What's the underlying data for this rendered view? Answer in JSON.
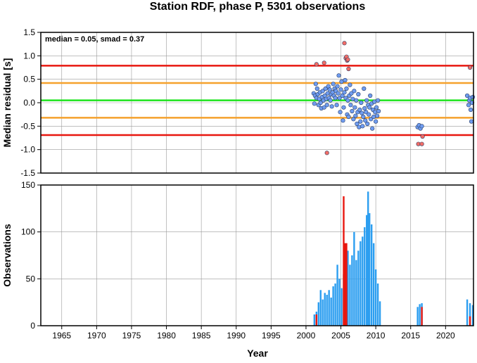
{
  "chart_data": [
    {
      "type": "scatter",
      "title": "Station RDF, phase P, 5301 observations",
      "ylabel": "Median residual [s]",
      "annotation": "median = 0.05, smad = 0.37",
      "xlim": [
        1962,
        2024
      ],
      "ylim": [
        -1.5,
        1.5
      ],
      "yticks": [
        "-1.5",
        "-1.0",
        "-0.5",
        "0.0",
        "0.5",
        "1.0",
        "1.5"
      ],
      "grid": true,
      "reference_lines": [
        {
          "y": 0.79,
          "color": "#e8170f"
        },
        {
          "y": 0.42,
          "color": "#f5a12c"
        },
        {
          "y": 0.05,
          "color": "#1de31d"
        },
        {
          "y": -0.32,
          "color": "#f5a12c"
        },
        {
          "y": -0.69,
          "color": "#e8170f"
        }
      ],
      "series": [
        {
          "color": "#6f9cf0",
          "points": [
            [
              2001.1,
              0.2
            ],
            [
              2001.2,
              -0.02
            ],
            [
              2001.3,
              0.15
            ],
            [
              2001.4,
              0.4
            ],
            [
              2001.5,
              0.1
            ],
            [
              2001.6,
              0.3
            ],
            [
              2001.7,
              0.18
            ],
            [
              2001.8,
              -0.05
            ],
            [
              2001.9,
              0.08
            ],
            [
              2002.0,
              0.22
            ],
            [
              2002.1,
              0.0
            ],
            [
              2002.2,
              -0.12
            ],
            [
              2002.3,
              0.12
            ],
            [
              2002.4,
              0.25
            ],
            [
              2002.5,
              0.05
            ],
            [
              2002.6,
              -0.1
            ],
            [
              2002.7,
              0.15
            ],
            [
              2002.8,
              0.3
            ],
            [
              2002.9,
              0.08
            ],
            [
              2003.0,
              -0.05
            ],
            [
              2003.1,
              0.2
            ],
            [
              2003.2,
              0.35
            ],
            [
              2003.3,
              0.1
            ],
            [
              2003.4,
              0.28
            ],
            [
              2003.5,
              0.05
            ],
            [
              2003.6,
              0.18
            ],
            [
              2003.7,
              -0.08
            ],
            [
              2003.8,
              0.22
            ],
            [
              2003.9,
              0.4
            ],
            [
              2004.0,
              0.15
            ],
            [
              2004.1,
              0.3
            ],
            [
              2004.2,
              0.1
            ],
            [
              2004.3,
              0.25
            ],
            [
              2004.4,
              -0.05
            ],
            [
              2004.5,
              0.35
            ],
            [
              2004.6,
              0.2
            ],
            [
              2004.7,
              0.58
            ],
            [
              2004.8,
              0.1
            ],
            [
              2004.9,
              -0.2
            ],
            [
              2005.0,
              0.28
            ],
            [
              2005.1,
              0.45
            ],
            [
              2005.2,
              0.15
            ],
            [
              2005.3,
              -0.38
            ],
            [
              2005.4,
              -0.1
            ],
            [
              2005.5,
              0.22
            ],
            [
              2005.6,
              0.48
            ],
            [
              2005.7,
              0.1
            ],
            [
              2005.8,
              0.3
            ],
            [
              2005.9,
              -0.25
            ],
            [
              2006.0,
              0.05
            ],
            [
              2006.1,
              -0.3
            ],
            [
              2006.2,
              0.15
            ],
            [
              2006.3,
              0.38
            ],
            [
              2006.4,
              -0.05
            ],
            [
              2006.5,
              0.2
            ],
            [
              2006.6,
              -0.18
            ],
            [
              2006.7,
              0.08
            ],
            [
              2006.8,
              -0.35
            ],
            [
              2006.9,
              0.25
            ],
            [
              2007.0,
              -0.1
            ],
            [
              2007.1,
              -0.28
            ],
            [
              2007.2,
              0.05
            ],
            [
              2007.3,
              -0.45
            ],
            [
              2007.4,
              -0.2
            ],
            [
              2007.5,
              0.18
            ],
            [
              2007.6,
              -0.52
            ],
            [
              2007.7,
              -0.15
            ],
            [
              2007.8,
              -0.4
            ],
            [
              2007.9,
              0.0
            ],
            [
              2008.0,
              -0.22
            ],
            [
              2008.1,
              -0.5
            ],
            [
              2008.2,
              -0.3
            ],
            [
              2008.3,
              0.3
            ],
            [
              2008.4,
              -0.12
            ],
            [
              2008.5,
              -0.38
            ],
            [
              2008.6,
              -0.2
            ],
            [
              2008.7,
              0.05
            ],
            [
              2008.8,
              -0.45
            ],
            [
              2008.9,
              -0.05
            ],
            [
              2009.0,
              -0.25
            ],
            [
              2009.1,
              -0.1
            ],
            [
              2009.2,
              0.15
            ],
            [
              2009.3,
              -0.35
            ],
            [
              2009.4,
              -0.02
            ],
            [
              2009.5,
              -0.55
            ],
            [
              2009.6,
              -0.15
            ],
            [
              2009.7,
              -0.3
            ],
            [
              2009.8,
              0.02
            ],
            [
              2009.9,
              -0.2
            ],
            [
              2010.0,
              -0.4
            ],
            [
              2010.1,
              -0.1
            ],
            [
              2010.2,
              -0.28
            ],
            [
              2010.3,
              0.05
            ],
            [
              2010.4,
              -0.18
            ],
            [
              2016.0,
              -0.52
            ],
            [
              2016.2,
              -0.48
            ],
            [
              2016.4,
              -0.55
            ],
            [
              2016.6,
              -0.5
            ],
            [
              2023.1,
              0.15
            ],
            [
              2023.3,
              -0.05
            ],
            [
              2023.4,
              0.05
            ],
            [
              2023.5,
              0.1
            ],
            [
              2023.6,
              -0.15
            ],
            [
              2023.7,
              -0.4
            ],
            [
              2023.8,
              0.0
            ],
            [
              2023.9,
              0.12
            ]
          ]
        },
        {
          "color": "#f26d66",
          "points": [
            [
              2001.5,
              0.82
            ],
            [
              2002.6,
              0.85
            ],
            [
              2003.0,
              -1.07
            ],
            [
              2005.5,
              1.27
            ],
            [
              2005.7,
              0.95
            ],
            [
              2005.8,
              0.98
            ],
            [
              2005.9,
              0.9
            ],
            [
              2006.0,
              0.92
            ],
            [
              2006.1,
              0.72
            ],
            [
              2016.1,
              -0.88
            ],
            [
              2016.6,
              -0.88
            ],
            [
              2016.7,
              -0.72
            ],
            [
              2023.5,
              0.75
            ]
          ]
        }
      ]
    },
    {
      "type": "bar",
      "ylabel": "Observations",
      "xlabel": "Year",
      "xlim": [
        1962,
        2024
      ],
      "ylim": [
        0,
        150
      ],
      "yticks": [
        "0",
        "50",
        "100",
        "150"
      ],
      "xticks": [
        "1965",
        "1970",
        "1975",
        "1980",
        "1985",
        "1990",
        "1995",
        "2000",
        "2005",
        "2010",
        "2015",
        "2020"
      ],
      "grid": true,
      "series": [
        {
          "color": "#2c9ef0",
          "points": [
            [
              2001.2,
              12
            ],
            [
              2001.5,
              15
            ],
            [
              2001.8,
              25
            ],
            [
              2002.1,
              38
            ],
            [
              2002.4,
              28
            ],
            [
              2002.7,
              35
            ],
            [
              2003.0,
              33
            ],
            [
              2003.3,
              38
            ],
            [
              2003.6,
              30
            ],
            [
              2003.9,
              42
            ],
            [
              2004.2,
              45
            ],
            [
              2004.5,
              65
            ],
            [
              2004.8,
              50
            ],
            [
              2005.1,
              40
            ],
            [
              2005.4,
              55
            ],
            [
              2005.7,
              60
            ],
            [
              2006.0,
              80
            ],
            [
              2006.3,
              65
            ],
            [
              2006.6,
              75
            ],
            [
              2006.9,
              100
            ],
            [
              2007.2,
              70
            ],
            [
              2007.5,
              80
            ],
            [
              2007.8,
              90
            ],
            [
              2008.1,
              95
            ],
            [
              2008.4,
              105
            ],
            [
              2008.7,
              118
            ],
            [
              2008.9,
              143
            ],
            [
              2009.1,
              120
            ],
            [
              2009.4,
              108
            ],
            [
              2009.7,
              88
            ],
            [
              2010.0,
              60
            ],
            [
              2010.3,
              45
            ],
            [
              2010.6,
              26
            ],
            [
              2016.0,
              20
            ],
            [
              2016.3,
              23
            ],
            [
              2016.6,
              24
            ],
            [
              2023.1,
              28
            ],
            [
              2023.5,
              24
            ],
            [
              2023.9,
              22
            ]
          ]
        },
        {
          "color": "#e8170f",
          "points": [
            [
              2001.5,
              12
            ],
            [
              2005.4,
              138
            ],
            [
              2005.6,
              88
            ],
            [
              2005.8,
              88
            ],
            [
              2016.6,
              20
            ],
            [
              2023.5,
              10
            ]
          ]
        }
      ]
    }
  ]
}
